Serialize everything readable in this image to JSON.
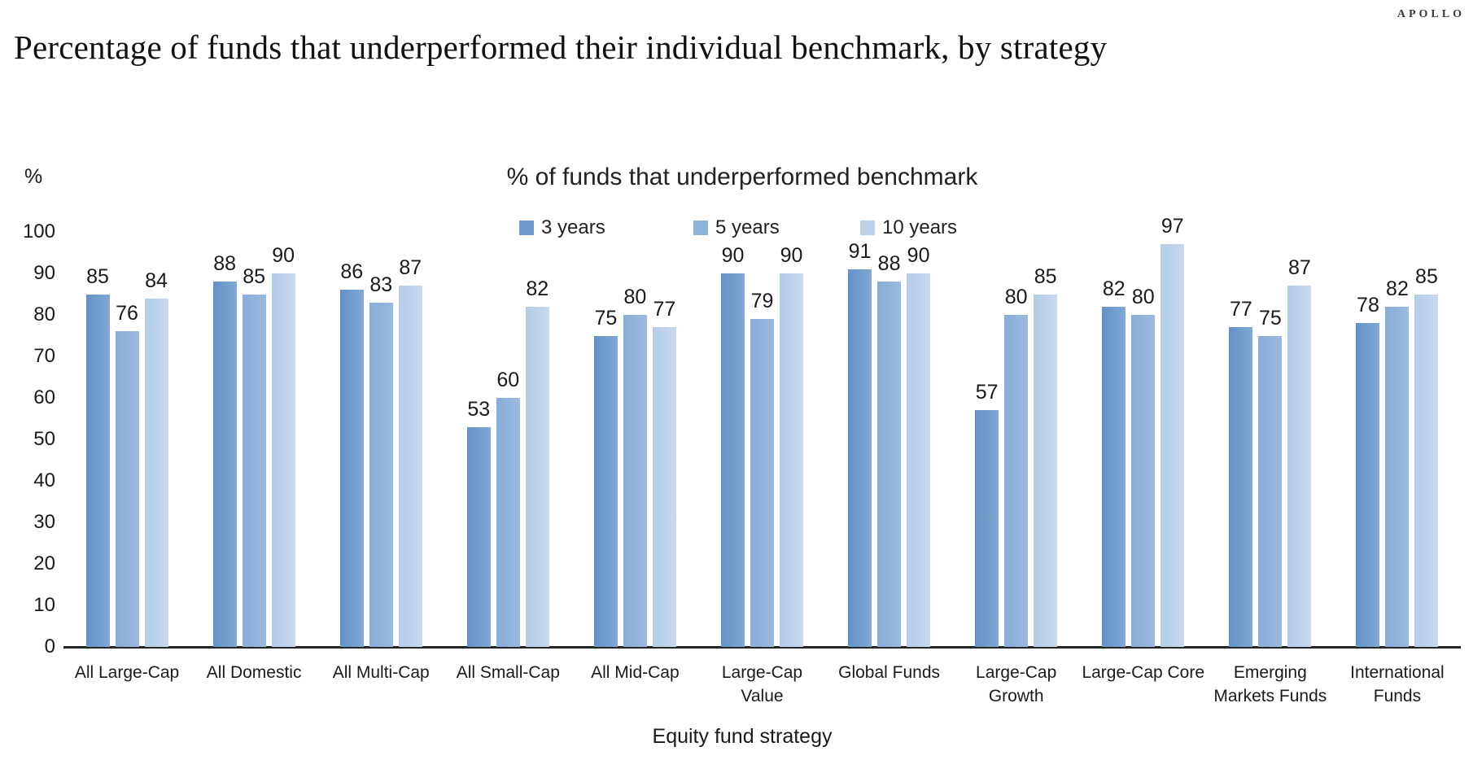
{
  "brand": {
    "logo_text": "APOLLO"
  },
  "header": {
    "title": "Percentage of funds that underperformed their individual benchmark, by strategy"
  },
  "chart_data": {
    "type": "bar",
    "title": "% of funds that underperformed benchmark",
    "y_unit_label": "%",
    "xlabel": "Equity fund strategy",
    "ylabel": "%",
    "ylim": [
      0,
      100
    ],
    "ytick_step": 10,
    "grid": false,
    "legend_position": "top-center",
    "categories": [
      "All Large-Cap",
      "All Domestic",
      "All Multi-Cap",
      "All Small-Cap",
      "All Mid-Cap",
      "Large-Cap\nValue",
      "Global Funds",
      "Large-Cap\nGrowth",
      "Large-Cap Core",
      "Emerging\nMarkets Funds",
      "International\nFunds"
    ],
    "series": [
      {
        "name": "3 years",
        "color": "#6e9bcb",
        "gradient": [
          "#6392c6",
          "#82a8d4"
        ],
        "values": [
          85,
          88,
          86,
          53,
          75,
          90,
          91,
          57,
          82,
          77,
          78
        ]
      },
      {
        "name": "5 years",
        "color": "#8fb2da",
        "gradient": [
          "#88add8",
          "#9cbade"
        ],
        "values": [
          76,
          85,
          83,
          60,
          80,
          79,
          88,
          80,
          80,
          75,
          82
        ]
      },
      {
        "name": "10 years",
        "color": "#bdd2e9",
        "gradient": [
          "#b5cbe7",
          "#c9d9ee"
        ],
        "values": [
          84,
          90,
          87,
          82,
          77,
          90,
          90,
          85,
          97,
          87,
          85
        ]
      }
    ]
  }
}
